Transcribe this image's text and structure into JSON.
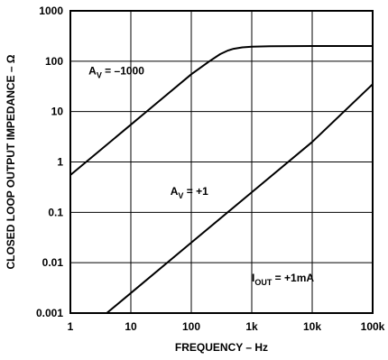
{
  "chart_data": {
    "type": "line",
    "title": "",
    "xlabel": "FREQUENCY – Hz",
    "ylabel": "CLOSED LOOP OUTPUT IMPEDANCE – Ω",
    "x_scale": "log",
    "y_scale": "log",
    "xlim": [
      1,
      100000
    ],
    "ylim": [
      0.001,
      1000
    ],
    "x_ticks": [
      {
        "value": 1,
        "label": "1"
      },
      {
        "value": 10,
        "label": "10"
      },
      {
        "value": 100,
        "label": "100"
      },
      {
        "value": 1000,
        "label": "1k"
      },
      {
        "value": 10000,
        "label": "10k"
      },
      {
        "value": 100000,
        "label": "100k"
      }
    ],
    "y_ticks": [
      {
        "value": 1000,
        "label": "1000"
      },
      {
        "value": 100,
        "label": "100"
      },
      {
        "value": 10,
        "label": "10"
      },
      {
        "value": 1,
        "label": "1"
      },
      {
        "value": 0.1,
        "label": "0.1"
      },
      {
        "value": 0.01,
        "label": "0.01"
      },
      {
        "value": 0.001,
        "label": "0.001"
      }
    ],
    "grid": true,
    "series": [
      {
        "x": [
          1,
          3,
          10,
          30,
          100,
          200,
          300,
          400,
          500,
          700,
          1000,
          2000,
          10000,
          100000
        ],
        "y": [
          0.55,
          1.65,
          5.5,
          16.5,
          55,
          100,
          138,
          162,
          176,
          188,
          194,
          198,
          200,
          200
        ]
      },
      {
        "x": [
          4,
          10,
          100,
          1000,
          10000,
          100000
        ],
        "y": [
          0.001,
          0.0025,
          0.025,
          0.25,
          2.5,
          35
        ]
      }
    ],
    "annotations": [
      {
        "main": "A",
        "sub": "V",
        "rest": " = –1000",
        "x": 2,
        "y": 55
      },
      {
        "main": "A",
        "sub": "V",
        "rest": " = +1",
        "x": 45,
        "y": 0.22
      },
      {
        "main": "I",
        "sub": "OUT",
        "rest": " = +1mA",
        "x": 1000,
        "y": 0.0042
      }
    ]
  }
}
